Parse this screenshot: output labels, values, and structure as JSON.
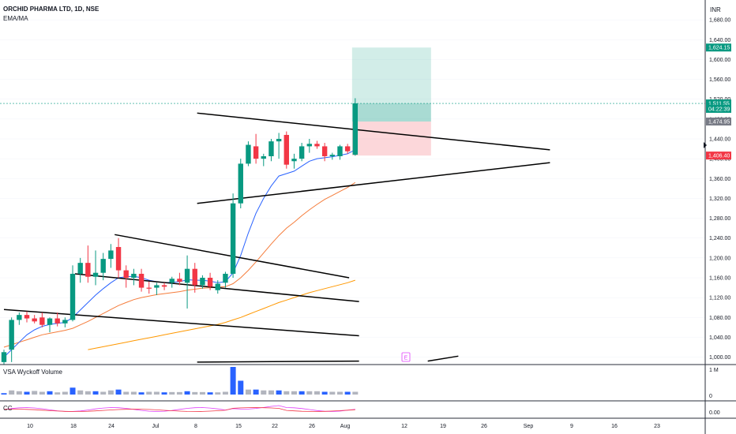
{
  "header": {
    "symbol_title": "ORCHID PHARMA LTD, 1D, NSE",
    "indicator": "EMA/MA",
    "currency": "INR"
  },
  "chart_data": {
    "type": "candlestick",
    "title": "ORCHID PHARMA LTD, 1D, NSE",
    "price_axis": {
      "ticks": [
        "1,000.00",
        "1,040.00",
        "1,080.00",
        "1,120.00",
        "1,160.00",
        "1,200.00",
        "1,240.00",
        "1,280.00",
        "1,320.00",
        "1,360.00",
        "1,400.00",
        "1,440.00",
        "1,480.00",
        "1,520.00",
        "1,560.00",
        "1,600.00",
        "1,640.00",
        "1,680.00"
      ],
      "range": [
        985,
        1720
      ]
    },
    "time_axis": {
      "labels": [
        "10",
        "18",
        "24",
        "Jul",
        "8",
        "15",
        "22",
        "26",
        "Aug",
        "12",
        "19",
        "26",
        "Sep",
        "9",
        "16",
        "23"
      ]
    },
    "price_tags": [
      {
        "text": "1,624.15",
        "value": 1624.15,
        "color": "#089981"
      },
      {
        "text": "1,511.55",
        "value": 1511.55,
        "color": "#089981"
      },
      {
        "text": "04:22:39",
        "value": 1500.5,
        "color": "#089981"
      },
      {
        "text": "1,474.95",
        "value": 1474.95,
        "color": "#787b86"
      },
      {
        "text": "1,406.40",
        "value": 1406.4,
        "color": "#f23645"
      }
    ],
    "candles": [
      {
        "o": 990,
        "h": 1015,
        "l": 985,
        "c": 1010
      },
      {
        "o": 1015,
        "h": 1080,
        "l": 990,
        "c": 1075
      },
      {
        "o": 1075,
        "h": 1090,
        "l": 1065,
        "c": 1085
      },
      {
        "o": 1085,
        "h": 1092,
        "l": 1070,
        "c": 1078
      },
      {
        "o": 1078,
        "h": 1085,
        "l": 1068,
        "c": 1072
      },
      {
        "o": 1080,
        "h": 1090,
        "l": 1060,
        "c": 1065
      },
      {
        "o": 1065,
        "h": 1080,
        "l": 1050,
        "c": 1078
      },
      {
        "o": 1078,
        "h": 1090,
        "l": 1062,
        "c": 1068
      },
      {
        "o": 1068,
        "h": 1080,
        "l": 1060,
        "c": 1075
      },
      {
        "o": 1075,
        "h": 1185,
        "l": 1072,
        "c": 1168
      },
      {
        "o": 1168,
        "h": 1200,
        "l": 1150,
        "c": 1190
      },
      {
        "o": 1190,
        "h": 1225,
        "l": 1150,
        "c": 1162
      },
      {
        "o": 1162,
        "h": 1215,
        "l": 1145,
        "c": 1170
      },
      {
        "o": 1170,
        "h": 1210,
        "l": 1155,
        "c": 1198
      },
      {
        "o": 1198,
        "h": 1228,
        "l": 1180,
        "c": 1215
      },
      {
        "o": 1222,
        "h": 1240,
        "l": 1160,
        "c": 1175
      },
      {
        "o": 1175,
        "h": 1185,
        "l": 1140,
        "c": 1160
      },
      {
        "o": 1160,
        "h": 1178,
        "l": 1145,
        "c": 1168
      },
      {
        "o": 1168,
        "h": 1178,
        "l": 1132,
        "c": 1140
      },
      {
        "o": 1140,
        "h": 1152,
        "l": 1128,
        "c": 1138
      },
      {
        "o": 1140,
        "h": 1150,
        "l": 1125,
        "c": 1145
      },
      {
        "o": 1145,
        "h": 1150,
        "l": 1135,
        "c": 1142
      },
      {
        "o": 1150,
        "h": 1162,
        "l": 1140,
        "c": 1158
      },
      {
        "o": 1158,
        "h": 1170,
        "l": 1145,
        "c": 1152
      },
      {
        "o": 1150,
        "h": 1205,
        "l": 1098,
        "c": 1178
      },
      {
        "o": 1178,
        "h": 1190,
        "l": 1130,
        "c": 1145
      },
      {
        "o": 1145,
        "h": 1165,
        "l": 1138,
        "c": 1160
      },
      {
        "o": 1160,
        "h": 1170,
        "l": 1135,
        "c": 1142
      },
      {
        "o": 1135,
        "h": 1155,
        "l": 1128,
        "c": 1148
      },
      {
        "o": 1150,
        "h": 1172,
        "l": 1140,
        "c": 1168
      },
      {
        "o": 1168,
        "h": 1330,
        "l": 1160,
        "c": 1310
      },
      {
        "o": 1310,
        "h": 1400,
        "l": 1300,
        "c": 1390
      },
      {
        "o": 1390,
        "h": 1435,
        "l": 1385,
        "c": 1428
      },
      {
        "o": 1425,
        "h": 1450,
        "l": 1390,
        "c": 1400
      },
      {
        "o": 1400,
        "h": 1410,
        "l": 1385,
        "c": 1405
      },
      {
        "o": 1405,
        "h": 1440,
        "l": 1395,
        "c": 1435
      },
      {
        "o": 1435,
        "h": 1452,
        "l": 1400,
        "c": 1440
      },
      {
        "o": 1448,
        "h": 1455,
        "l": 1380,
        "c": 1388
      },
      {
        "o": 1395,
        "h": 1410,
        "l": 1380,
        "c": 1400
      },
      {
        "o": 1400,
        "h": 1432,
        "l": 1395,
        "c": 1425
      },
      {
        "o": 1425,
        "h": 1440,
        "l": 1412,
        "c": 1430
      },
      {
        "o": 1430,
        "h": 1436,
        "l": 1420,
        "c": 1425
      },
      {
        "o": 1425,
        "h": 1432,
        "l": 1395,
        "c": 1405
      },
      {
        "o": 1405,
        "h": 1412,
        "l": 1398,
        "c": 1408
      },
      {
        "o": 1405,
        "h": 1428,
        "l": 1398,
        "c": 1425
      },
      {
        "o": 1425,
        "h": 1430,
        "l": 1410,
        "c": 1415
      },
      {
        "o": 1408,
        "h": 1522,
        "l": 1406,
        "c": 1511.55
      }
    ],
    "ema_fast": [
      1000,
      1015,
      1030,
      1045,
      1055,
      1062,
      1066,
      1068,
      1070,
      1080,
      1095,
      1110,
      1125,
      1138,
      1150,
      1160,
      1162,
      1163,
      1160,
      1155,
      1152,
      1150,
      1151,
      1152,
      1156,
      1155,
      1155,
      1153,
      1150,
      1152,
      1170,
      1205,
      1250,
      1290,
      1320,
      1345,
      1365,
      1370,
      1375,
      1385,
      1395,
      1400,
      1402,
      1404,
      1407,
      1410,
      1418
    ],
    "ema_slow": [
      1020,
      1025,
      1030,
      1035,
      1040,
      1045,
      1048,
      1051,
      1054,
      1058,
      1065,
      1072,
      1080,
      1088,
      1096,
      1104,
      1110,
      1116,
      1120,
      1123,
      1126,
      1128,
      1130,
      1132,
      1135,
      1137,
      1139,
      1140,
      1141,
      1142,
      1148,
      1160,
      1175,
      1192,
      1210,
      1228,
      1245,
      1260,
      1272,
      1285,
      1297,
      1308,
      1318,
      1326,
      1334,
      1342,
      1352
    ],
    "ma_long": [
      null,
      null,
      null,
      null,
      null,
      null,
      null,
      null,
      null,
      null,
      null,
      1015,
      1018,
      1021,
      1024,
      1027,
      1030,
      1033,
      1036,
      1039,
      1042,
      1045,
      1048,
      1051,
      1054,
      1057,
      1060,
      1063,
      1066,
      1070,
      1075,
      1080,
      1086,
      1092,
      1098,
      1104,
      1110,
      1115,
      1120,
      1125,
      1130,
      1134,
      1138,
      1142,
      1146,
      1150,
      1155
    ],
    "trendlines": [
      {
        "from": [
          0,
          1096
        ],
        "to": [
          46.5,
          1043
        ]
      },
      {
        "from": [
          9.3,
          1168
        ],
        "to": [
          46.5,
          1112
        ]
      },
      {
        "from": [
          14.5,
          1247
        ],
        "to": [
          45.2,
          1160
        ]
      },
      {
        "from": [
          25.3,
          1310
        ],
        "to": [
          71.5,
          1392
        ]
      },
      {
        "from": [
          25.3,
          1492
        ],
        "to": [
          71.5,
          1418
        ]
      },
      {
        "from": [
          25.3,
          990
        ],
        "to": [
          46.5,
          992
        ]
      },
      {
        "from": [
          55.5,
          992
        ],
        "to": [
          59.5,
          1002
        ]
      }
    ],
    "position": {
      "entry": 1511.55,
      "target": 1624.15,
      "stop": 1406.4
    },
    "volume": {
      "label": "VSA Wyckoff Volume",
      "ticks": [
        "1 M",
        "0"
      ],
      "values": [
        0.05,
        0.15,
        0.12,
        0.1,
        0.13,
        0.1,
        0.12,
        0.08,
        0.1,
        0.25,
        0.15,
        0.12,
        0.12,
        0.1,
        0.15,
        0.18,
        0.1,
        0.1,
        0.08,
        0.1,
        0.1,
        0.08,
        0.09,
        0.09,
        0.12,
        0.09,
        0.09,
        0.08,
        0.08,
        0.1,
        1.0,
        0.5,
        0.18,
        0.18,
        0.15,
        0.15,
        0.15,
        0.12,
        0.12,
        0.12,
        0.12,
        0.12,
        0.1,
        0.1,
        0.1,
        0.1,
        0.1
      ]
    },
    "cc": {
      "label": "CC",
      "ticks": [
        "0.00"
      ]
    },
    "event_marker": "E"
  }
}
